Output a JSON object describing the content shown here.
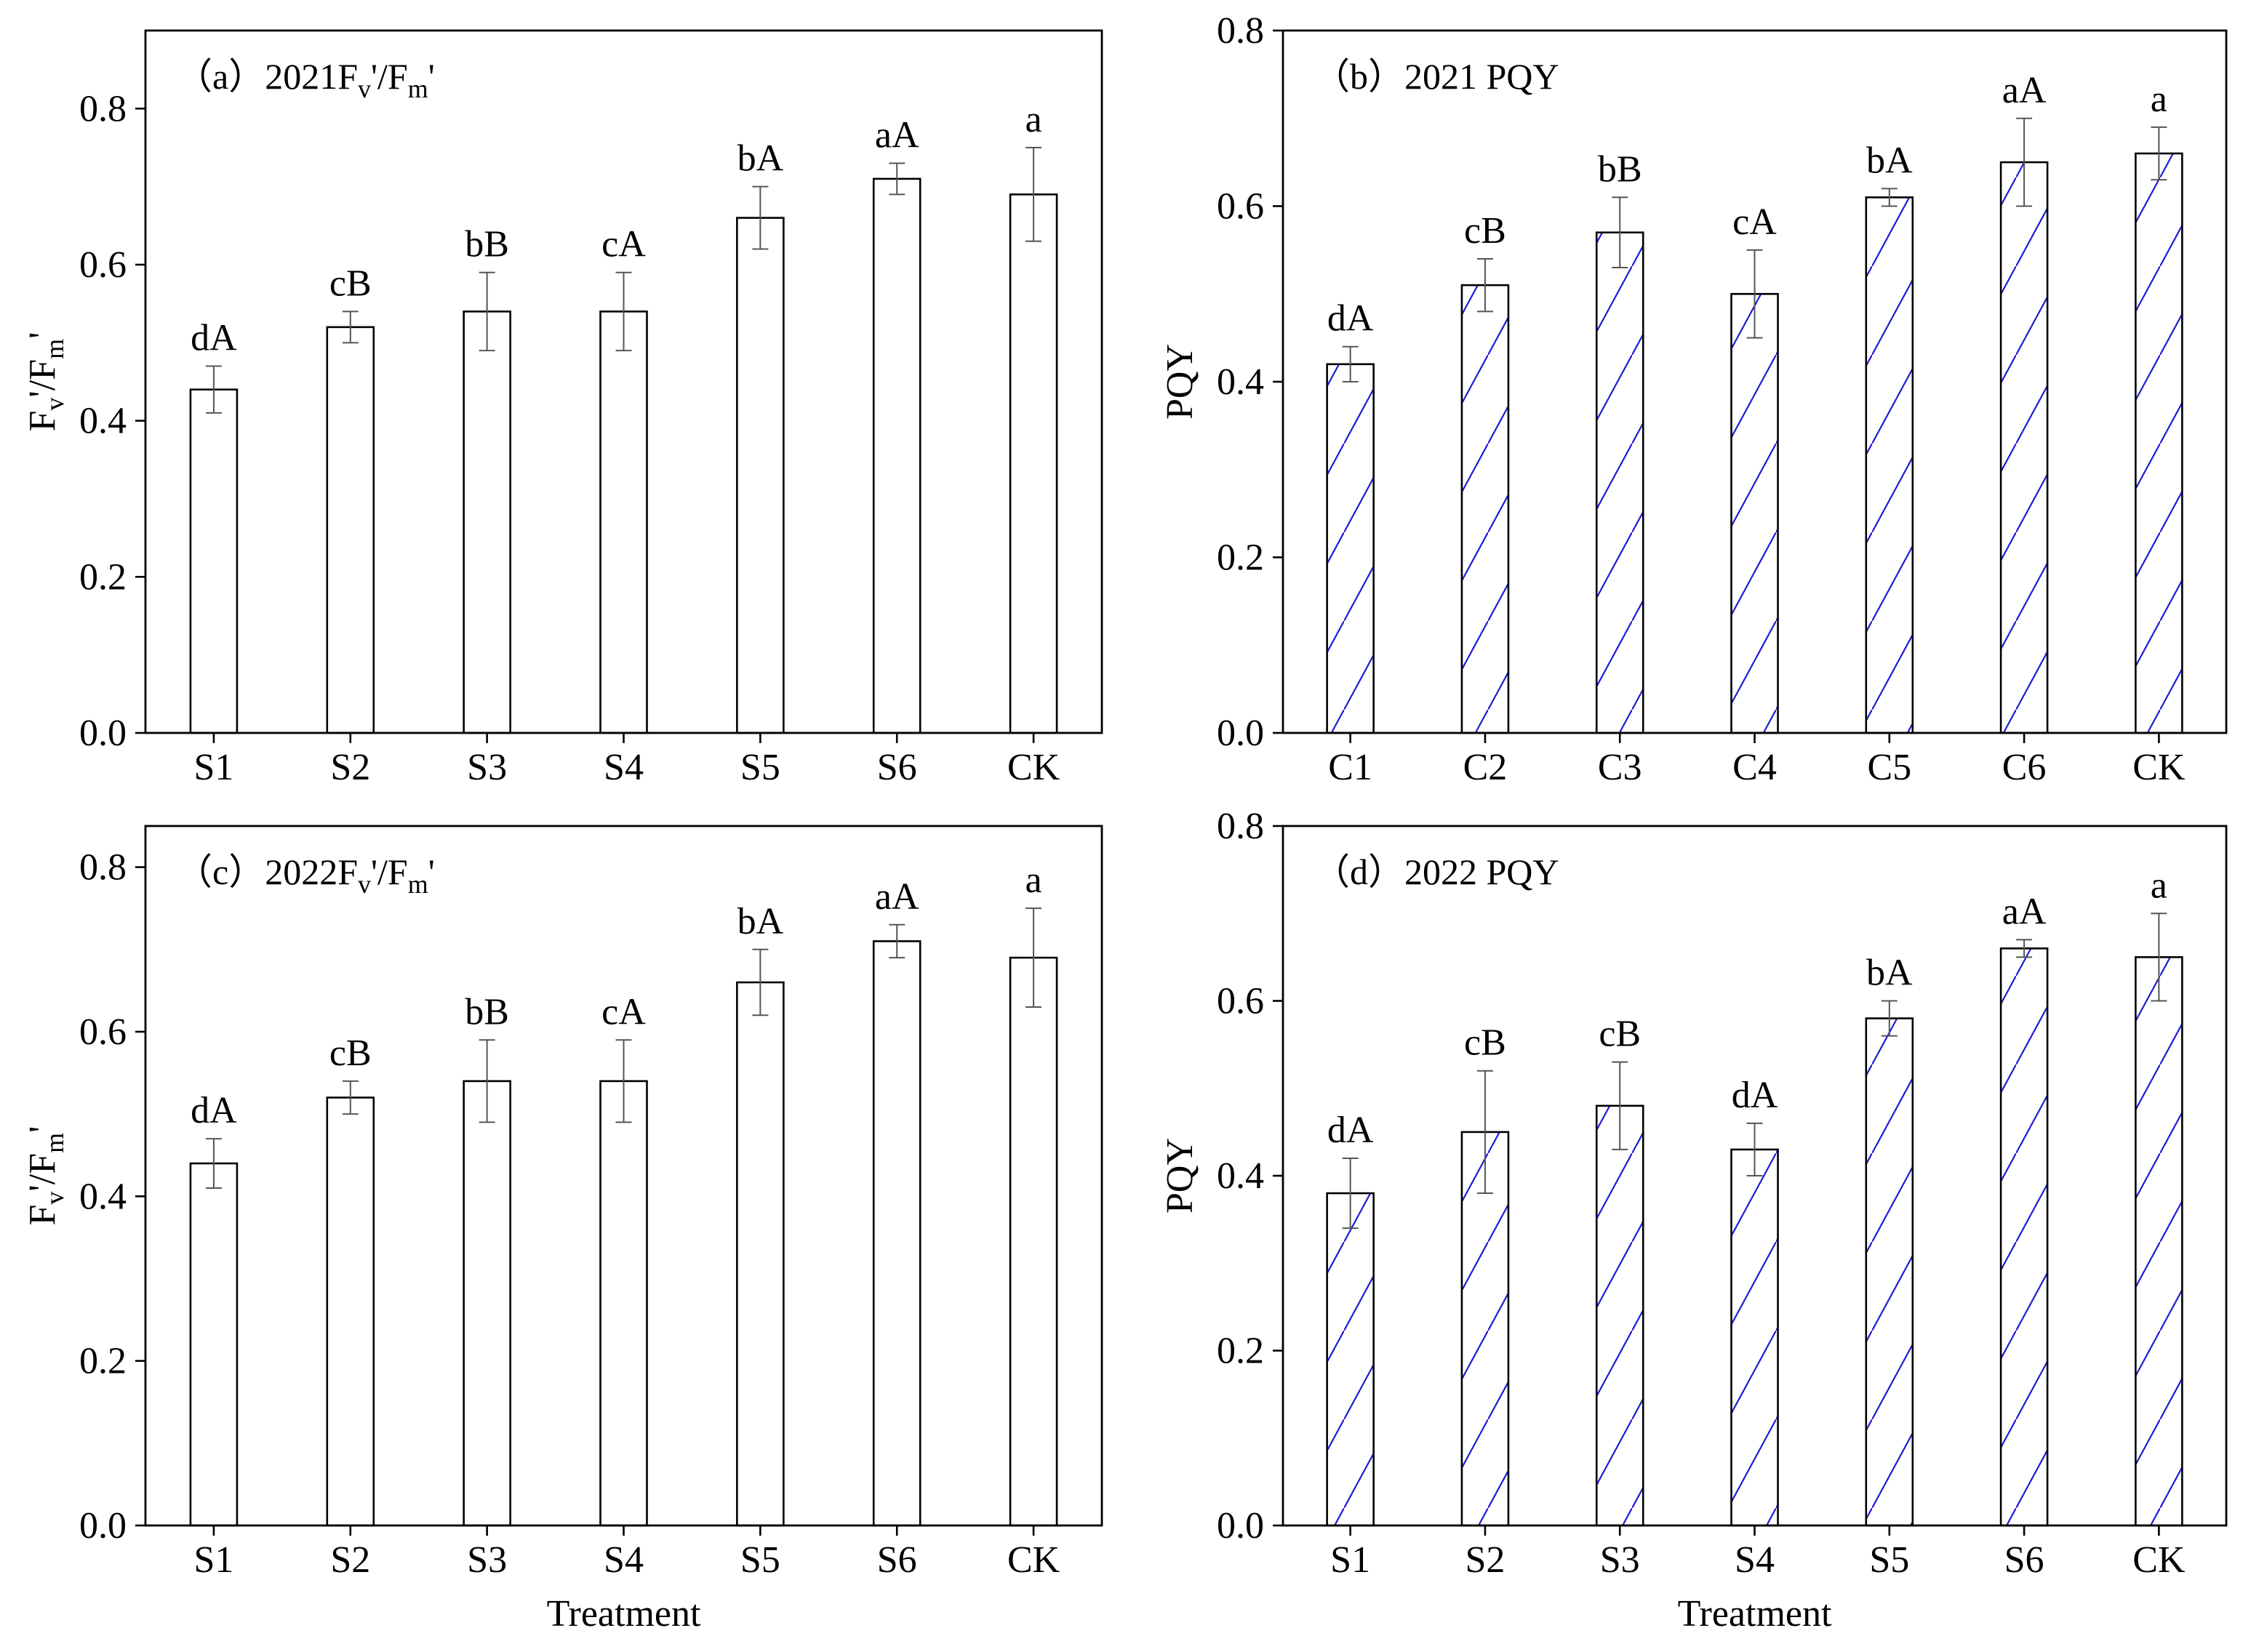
{
  "chart_data": [
    {
      "id": "a",
      "type": "bar",
      "panel_label": "（a）",
      "title_prefix": "2021F",
      "title_sub1": "v",
      "title_mid": "'/F",
      "title_sub2": "m",
      "title_suffix": "'",
      "ylabel_main": "F",
      "ylabel_sub1": "v",
      "ylabel_mid": "'/F",
      "ylabel_sub2": "m",
      "ylabel_suffix": "'",
      "xlabel": "",
      "categories": [
        "S1",
        "S2",
        "S3",
        "S4",
        "S5",
        "S6",
        "CK"
      ],
      "values": [
        0.44,
        0.52,
        0.54,
        0.54,
        0.66,
        0.71,
        0.69
      ],
      "errors": [
        0.03,
        0.02,
        0.05,
        0.05,
        0.04,
        0.02,
        0.06
      ],
      "letters": [
        "dA",
        "cB",
        "bB",
        "cA",
        "bA",
        "aA",
        "a"
      ],
      "ylim": [
        0,
        0.9
      ],
      "yticks": [
        "0.0",
        "0.2",
        "0.4",
        "0.6",
        "0.8"
      ],
      "ytick_values": [
        0,
        0.2,
        0.4,
        0.6,
        0.8
      ],
      "hatch": false
    },
    {
      "id": "b",
      "type": "bar",
      "panel_label": "（b）",
      "title_prefix": "2021 PQY",
      "ylabel_main": "PQY",
      "xlabel": "",
      "categories": [
        "C1",
        "C2",
        "C3",
        "C4",
        "C5",
        "C6",
        "CK"
      ],
      "values": [
        0.42,
        0.51,
        0.57,
        0.5,
        0.61,
        0.65,
        0.66
      ],
      "errors": [
        0.02,
        0.03,
        0.04,
        0.05,
        0.01,
        0.05,
        0.03
      ],
      "letters": [
        "dA",
        "cB",
        "bB",
        "cA",
        "bA",
        "aA",
        "a"
      ],
      "ylim": [
        0,
        0.8
      ],
      "yticks": [
        "0.0",
        "0.2",
        "0.4",
        "0.6",
        "0.8"
      ],
      "ytick_values": [
        0,
        0.2,
        0.4,
        0.6,
        0.8
      ],
      "hatch": true
    },
    {
      "id": "c",
      "type": "bar",
      "panel_label": "（c）",
      "title_prefix": "2022F",
      "title_sub1": "v",
      "title_mid": "'/F",
      "title_sub2": "m",
      "title_suffix": "'",
      "ylabel_main": "F",
      "ylabel_sub1": "v",
      "ylabel_mid": "'/F",
      "ylabel_sub2": "m",
      "ylabel_suffix": "'",
      "xlabel": "Treatment",
      "categories": [
        "S1",
        "S2",
        "S3",
        "S4",
        "S5",
        "S6",
        "CK"
      ],
      "values": [
        0.44,
        0.52,
        0.54,
        0.54,
        0.66,
        0.71,
        0.69
      ],
      "errors": [
        0.03,
        0.02,
        0.05,
        0.05,
        0.04,
        0.02,
        0.06
      ],
      "letters": [
        "dA",
        "cB",
        "bB",
        "cA",
        "bA",
        "aA",
        "a"
      ],
      "ylim": [
        0,
        0.85
      ],
      "yticks": [
        "0.0",
        "0.2",
        "0.4",
        "0.6",
        "0.8"
      ],
      "ytick_values": [
        0,
        0.2,
        0.4,
        0.6,
        0.8
      ],
      "hatch": false
    },
    {
      "id": "d",
      "type": "bar",
      "panel_label": "（d）",
      "title_prefix": "2022 PQY",
      "ylabel_main": "PQY",
      "xlabel": "Treatment",
      "categories": [
        "S1",
        "S2",
        "S3",
        "S4",
        "S5",
        "S6",
        "CK"
      ],
      "values": [
        0.38,
        0.45,
        0.48,
        0.43,
        0.58,
        0.66,
        0.65
      ],
      "errors": [
        0.04,
        0.07,
        0.05,
        0.03,
        0.02,
        0.01,
        0.05
      ],
      "letters": [
        "dA",
        "cB",
        "cB",
        "dA",
        "bA",
        "aA",
        "a"
      ],
      "ylim": [
        0,
        0.8
      ],
      "yticks": [
        "0.0",
        "0.2",
        "0.4",
        "0.6",
        "0.8"
      ],
      "ytick_values": [
        0,
        0.2,
        0.4,
        0.6,
        0.8
      ],
      "hatch": true
    }
  ],
  "colors": {
    "bar_fill": "#ffffff",
    "bar_stroke": "#000000",
    "hatch": "#1a1ad6",
    "error_bar": "#555555"
  }
}
